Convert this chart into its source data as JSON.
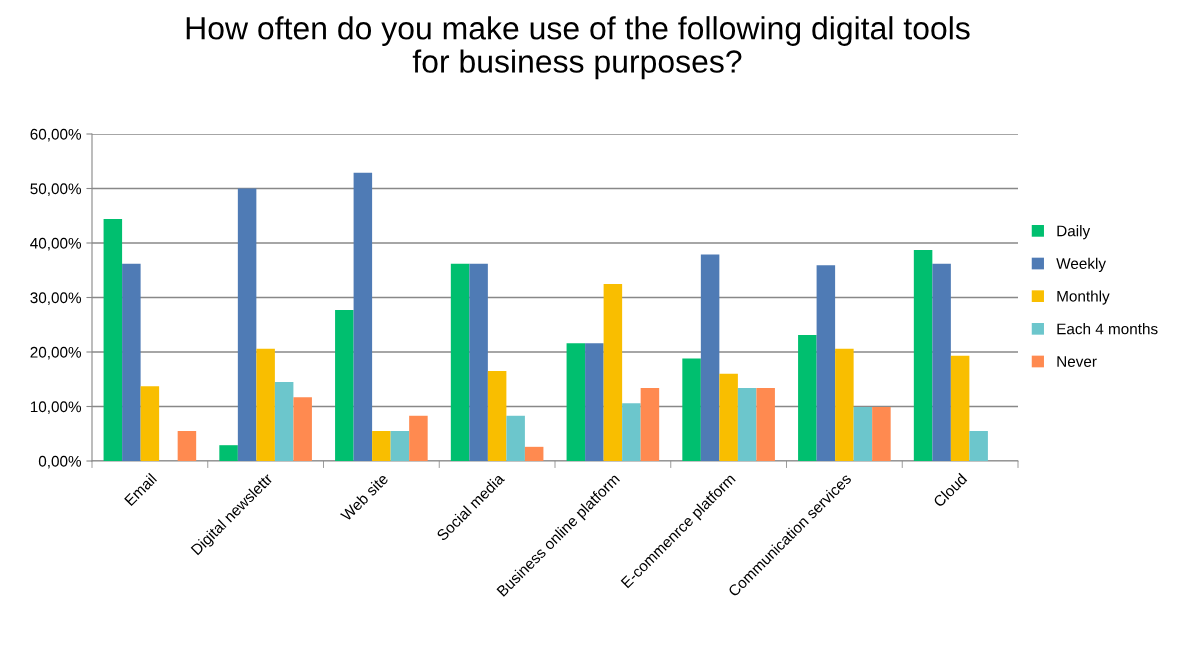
{
  "chart_data": {
    "type": "bar",
    "title": "How often do you make use of the following digital tools\nfor business purposes?",
    "categories": [
      "Email",
      "Digital newslettr",
      "Web site",
      "Social media",
      "Business online platform",
      "E-commenrce platform",
      "Communication services",
      "Cloud"
    ],
    "series": [
      {
        "name": "Daily",
        "color": "#00bf6f",
        "values": [
          44.4,
          2.9,
          27.7,
          36.2,
          21.6,
          18.8,
          23.1,
          38.7
        ]
      },
      {
        "name": "Weekly",
        "color": "#4f7bb5",
        "values": [
          36.2,
          50.0,
          52.9,
          36.2,
          21.6,
          37.9,
          35.9,
          36.2
        ]
      },
      {
        "name": "Monthly",
        "color": "#f9be00",
        "values": [
          13.7,
          20.6,
          5.5,
          16.5,
          32.5,
          16.0,
          20.6,
          19.3
        ]
      },
      {
        "name": "Each 4 months",
        "color": "#6cc6cc",
        "values": [
          0,
          14.5,
          5.5,
          8.3,
          10.6,
          13.4,
          9.9,
          5.5
        ]
      },
      {
        "name": "Never",
        "color": "#ff8a50",
        "values": [
          5.5,
          11.7,
          8.3,
          2.6,
          13.4,
          13.4,
          9.9,
          0
        ]
      }
    ],
    "ylim": [
      0,
      60
    ],
    "yticks": [
      {
        "value": 0,
        "label": "0,00%"
      },
      {
        "value": 10,
        "label": "10,00%"
      },
      {
        "value": 20,
        "label": "20,00%"
      },
      {
        "value": 30,
        "label": "30,00%"
      },
      {
        "value": 40,
        "label": "40,00%"
      },
      {
        "value": 50,
        "label": "50,00%"
      },
      {
        "value": 60,
        "label": "60,00%"
      }
    ],
    "grid": "y",
    "legend": "right"
  }
}
